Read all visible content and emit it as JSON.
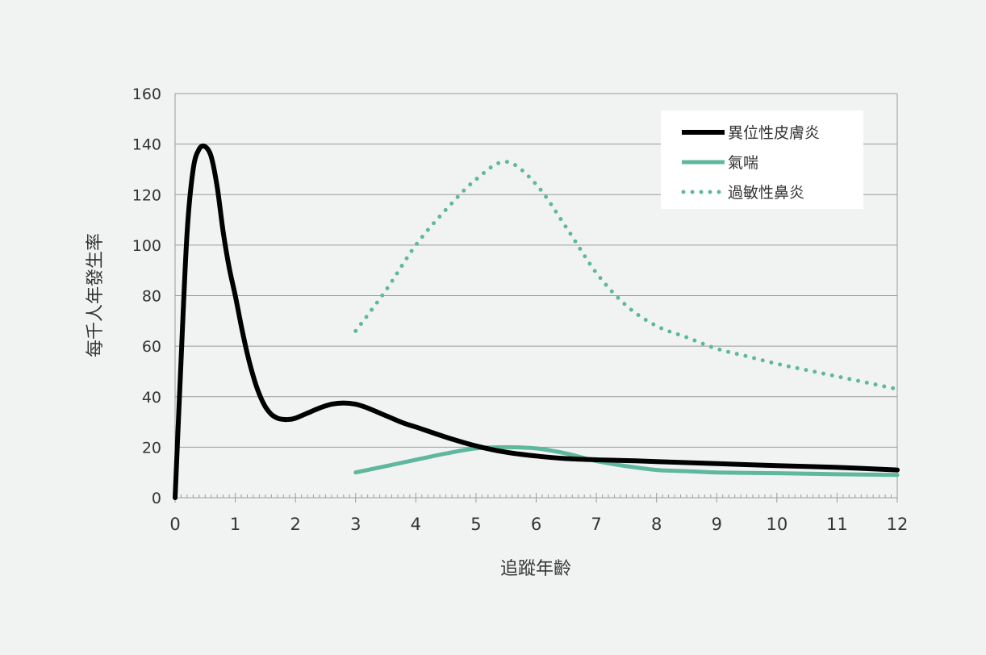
{
  "chart_data": {
    "type": "line",
    "xlabel": "追蹤年齡",
    "ylabel": "每千人年發生率",
    "xlim": [
      0,
      12
    ],
    "ylim": [
      0,
      160
    ],
    "x_ticks": [
      "0",
      "1",
      "2",
      "3",
      "4",
      "5",
      "6",
      "7",
      "8",
      "9",
      "10",
      "11",
      "12"
    ],
    "y_ticks": [
      "0",
      "20",
      "40",
      "60",
      "80",
      "100",
      "120",
      "140",
      "160"
    ],
    "grid": "horizontal",
    "legend_position": "top-right",
    "series": [
      {
        "name": "異位性皮膚炎",
        "color": "#000000",
        "style": "solid",
        "x": [
          0,
          0.1,
          0.2,
          0.3,
          0.4,
          0.5,
          0.6,
          0.7,
          0.8,
          0.9,
          1.0,
          1.1,
          1.2,
          1.3,
          1.4,
          1.5,
          1.6,
          1.7,
          1.8,
          1.9,
          2.0,
          2.2,
          2.4,
          2.6,
          2.8,
          3.0,
          3.2,
          3.4,
          3.6,
          3.8,
          4.0,
          4.5,
          5.0,
          5.5,
          6.0,
          6.5,
          7.0,
          7.5,
          8.0,
          9.0,
          10.0,
          11.0,
          12.0
        ],
        "values": [
          0,
          55,
          105,
          130,
          138,
          139,
          135,
          123,
          105,
          91,
          80,
          68,
          57,
          48,
          41,
          36,
          33,
          31.5,
          31,
          31,
          31.5,
          33.5,
          35.5,
          37,
          37.5,
          37,
          35.5,
          33.5,
          31.5,
          29.5,
          28,
          24,
          20.5,
          18,
          16.5,
          15.5,
          15,
          14.7,
          14.3,
          13.5,
          12.7,
          12,
          11
        ]
      },
      {
        "name": "氣喘",
        "color": "#5fb89e",
        "style": "solid",
        "x": [
          3,
          3.5,
          4,
          4.5,
          5,
          5.5,
          6,
          6.5,
          7,
          7.5,
          8,
          8.5,
          9,
          10,
          11,
          12
        ],
        "values": [
          10,
          12.5,
          15,
          17.5,
          19.5,
          20,
          19.5,
          17.5,
          14.5,
          12.5,
          11,
          10.5,
          10,
          9.7,
          9.3,
          9
        ]
      },
      {
        "name": "過敏性鼻炎",
        "color": "#5fb89e",
        "style": "dotted",
        "x": [
          3,
          3.5,
          4,
          4.5,
          5,
          5.5,
          6,
          6.5,
          7,
          7.5,
          8,
          8.5,
          9,
          9.5,
          10,
          10.5,
          11,
          11.5,
          12
        ],
        "values": [
          66,
          82,
          100,
          114,
          126,
          133,
          124,
          107,
          89,
          76,
          68,
          63.5,
          59,
          56,
          53,
          50.5,
          48,
          45.5,
          43
        ]
      }
    ]
  }
}
